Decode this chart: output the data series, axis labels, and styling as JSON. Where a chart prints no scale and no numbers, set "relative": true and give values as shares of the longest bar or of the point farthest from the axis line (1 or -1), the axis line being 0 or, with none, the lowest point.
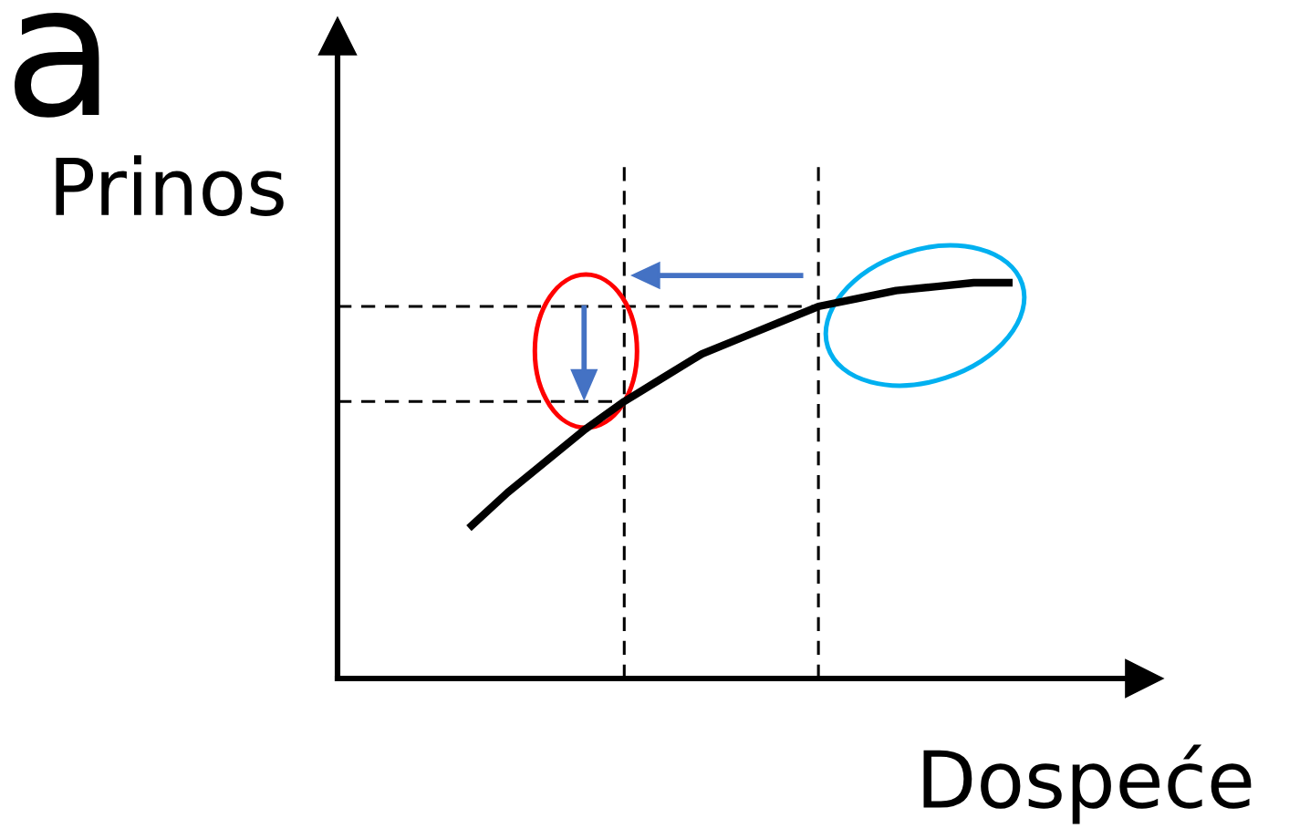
{
  "chart_data": {
    "type": "line",
    "relative": true,
    "xlabel": "Dospeće",
    "ylabel": "Prinos",
    "annotations": [
      "a"
    ],
    "line_style": "solid",
    "marker": "none",
    "categories": [
      null,
      null,
      null,
      null,
      null,
      null,
      null,
      null,
      null,
      null,
      null,
      null,
      null,
      null,
      null
    ],
    "series": [
      {
        "color": "#000000",
        "values": [
          0.38,
          0.47,
          0.55,
          0.63,
          0.7,
          0.76,
          0.82,
          0.86,
          0.9,
          0.94,
          0.96,
          0.98,
          0.99,
          1,
          1
        ]
      }
    ],
    "ref_lines": [
      {
        "axis": "y",
        "value": 0.94,
        "line_style": "dashed",
        "color": "#000000"
      },
      {
        "axis": "y",
        "value": 0.7,
        "line_style": "dashed",
        "color": "#000000"
      }
    ]
  }
}
